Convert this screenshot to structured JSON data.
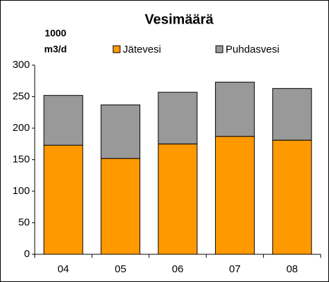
{
  "chart_data": {
    "type": "bar",
    "stacked": true,
    "title": "Vesimäärä",
    "ylabel": [
      "1000",
      "m3/d"
    ],
    "categories": [
      "04",
      "05",
      "06",
      "07",
      "08"
    ],
    "series": [
      {
        "name": "Jätevesi",
        "color": "#ff9900",
        "values": [
          173,
          152,
          175,
          187,
          181
        ]
      },
      {
        "name": "Puhdasvesi",
        "color": "#999999",
        "values": [
          79,
          85,
          82,
          86,
          82
        ]
      }
    ],
    "ylim": [
      0,
      300
    ],
    "yticks": [
      0,
      50,
      100,
      150,
      200,
      250,
      300
    ],
    "grid": false
  }
}
